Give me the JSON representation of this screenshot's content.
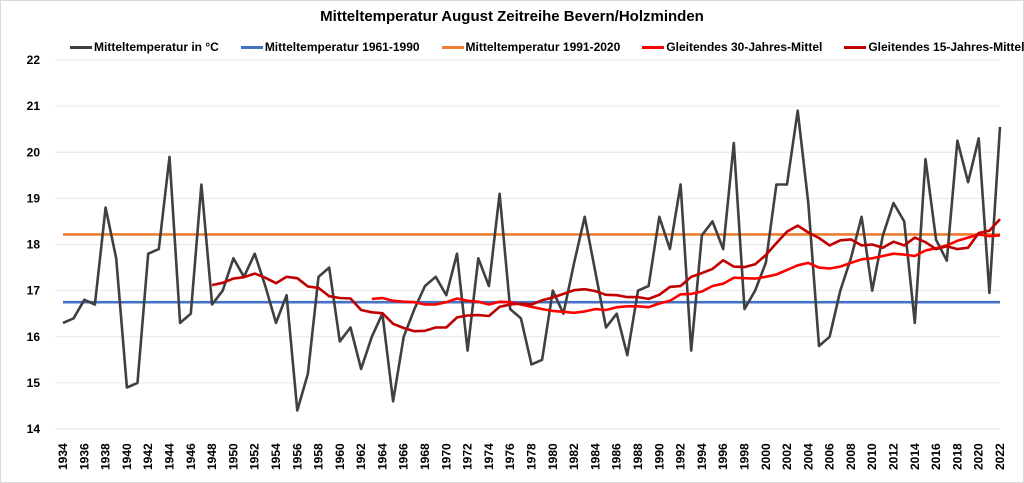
{
  "chart_data": {
    "type": "line",
    "title": "Mitteltemperatur August Zeitreihe Bevern/Holzminden",
    "xlabel": "",
    "ylabel": "",
    "ylim": [
      14,
      22
    ],
    "yticks": [
      "14",
      "15",
      "16",
      "17",
      "18",
      "19",
      "20",
      "21",
      "22"
    ],
    "xlim": [
      1934,
      2022
    ],
    "xticks": [
      "1934",
      "1936",
      "1938",
      "1940",
      "1942",
      "1944",
      "1946",
      "1948",
      "1950",
      "1952",
      "1954",
      "1956",
      "1958",
      "1960",
      "1962",
      "1964",
      "1966",
      "1968",
      "1970",
      "1972",
      "1974",
      "1976",
      "1978",
      "1980",
      "1982",
      "1984",
      "1986",
      "1988",
      "1990",
      "1992",
      "1994",
      "1996",
      "1998",
      "2000",
      "2002",
      "2004",
      "2006",
      "2008",
      "2010",
      "2012",
      "2014",
      "2016",
      "2018",
      "2020",
      "2022"
    ],
    "grid": true,
    "legend_position": "top",
    "series": [
      {
        "name": "Mitteltemperatur in °C",
        "color": "#404040",
        "start_year": 1934,
        "values": [
          16.3,
          16.4,
          16.8,
          16.7,
          18.8,
          17.7,
          14.9,
          15.0,
          17.8,
          17.9,
          19.9,
          16.3,
          16.5,
          19.3,
          16.7,
          17.0,
          17.7,
          17.3,
          17.8,
          17.1,
          16.3,
          16.9,
          14.4,
          15.2,
          17.3,
          17.5,
          15.9,
          16.2,
          15.3,
          16.0,
          16.5,
          14.6,
          16.0,
          16.6,
          17.1,
          17.3,
          16.9,
          17.8,
          15.7,
          17.7,
          17.1,
          19.1,
          16.6,
          16.4,
          15.4,
          15.5,
          17.0,
          16.5,
          17.6,
          18.6,
          17.4,
          16.2,
          16.5,
          15.6,
          17.0,
          17.1,
          18.6,
          17.9,
          19.3,
          15.7,
          18.2,
          18.5,
          17.9,
          20.2,
          16.6,
          17.0,
          17.6,
          19.3,
          19.3,
          20.9,
          18.9,
          15.8,
          16.0,
          17.0,
          17.7,
          18.6,
          17.0,
          18.2,
          18.9,
          18.5,
          16.3,
          19.85,
          18.1,
          17.65,
          20.25,
          19.35,
          20.3,
          16.95,
          20.55
        ]
      },
      {
        "name": "Mitteltemperatur 1961-1990",
        "color": "#4472c4",
        "constant": 16.75,
        "start_year": 1934,
        "end_year": 2022
      },
      {
        "name": "Mitteltemperatur 1991-2020",
        "color": "#ed7d31",
        "constant": 18.22,
        "start_year": 1934,
        "end_year": 2022
      },
      {
        "name": "Gleitendes 30-Jahres-Mittel",
        "color": "#ff0000",
        "start_year": 1963,
        "values": [
          16.82,
          16.84,
          16.78,
          16.76,
          16.75,
          16.7,
          16.7,
          16.75,
          16.83,
          16.78,
          16.76,
          16.7,
          16.76,
          16.75,
          16.7,
          16.65,
          16.6,
          16.56,
          16.54,
          16.52,
          16.55,
          16.6,
          16.58,
          16.64,
          16.66,
          16.66,
          16.64,
          16.72,
          16.78,
          16.92,
          16.93,
          16.98,
          17.1,
          17.15,
          17.28,
          17.27,
          17.26,
          17.3,
          17.35,
          17.45,
          17.55,
          17.6,
          17.5,
          17.48,
          17.52,
          17.6,
          17.68,
          17.7,
          17.75,
          17.8,
          17.78,
          17.75,
          17.87,
          17.92,
          17.98,
          18.08,
          18.15,
          18.22,
          18.18,
          18.2
        ]
      },
      {
        "name": "Gleitendes 15-Jahres-Mittel",
        "color": "#c00000",
        "start_year": 1948,
        "values": [
          17.12,
          17.17,
          17.26,
          17.29,
          17.37,
          17.28,
          17.16,
          17.3,
          17.27,
          17.09,
          17.06,
          16.88,
          16.84,
          16.83,
          16.58,
          16.53,
          16.51,
          16.28,
          16.19,
          16.12,
          16.13,
          16.2,
          16.2,
          16.42,
          16.46,
          16.47,
          16.45,
          16.65,
          16.7,
          16.72,
          16.7,
          16.79,
          16.85,
          16.93,
          17.01,
          17.03,
          16.99,
          16.91,
          16.9,
          16.86,
          16.86,
          16.82,
          16.91,
          17.08,
          17.1,
          17.3,
          17.38,
          17.47,
          17.66,
          17.52,
          17.51,
          17.57,
          17.77,
          18.03,
          18.28,
          18.41,
          18.26,
          18.14,
          17.98,
          18.09,
          18.11,
          17.98,
          18.0,
          17.93,
          18.06,
          17.98,
          18.15,
          18.05,
          17.9,
          17.96,
          17.9,
          17.93,
          18.25,
          18.3,
          18.55
        ]
      }
    ]
  }
}
